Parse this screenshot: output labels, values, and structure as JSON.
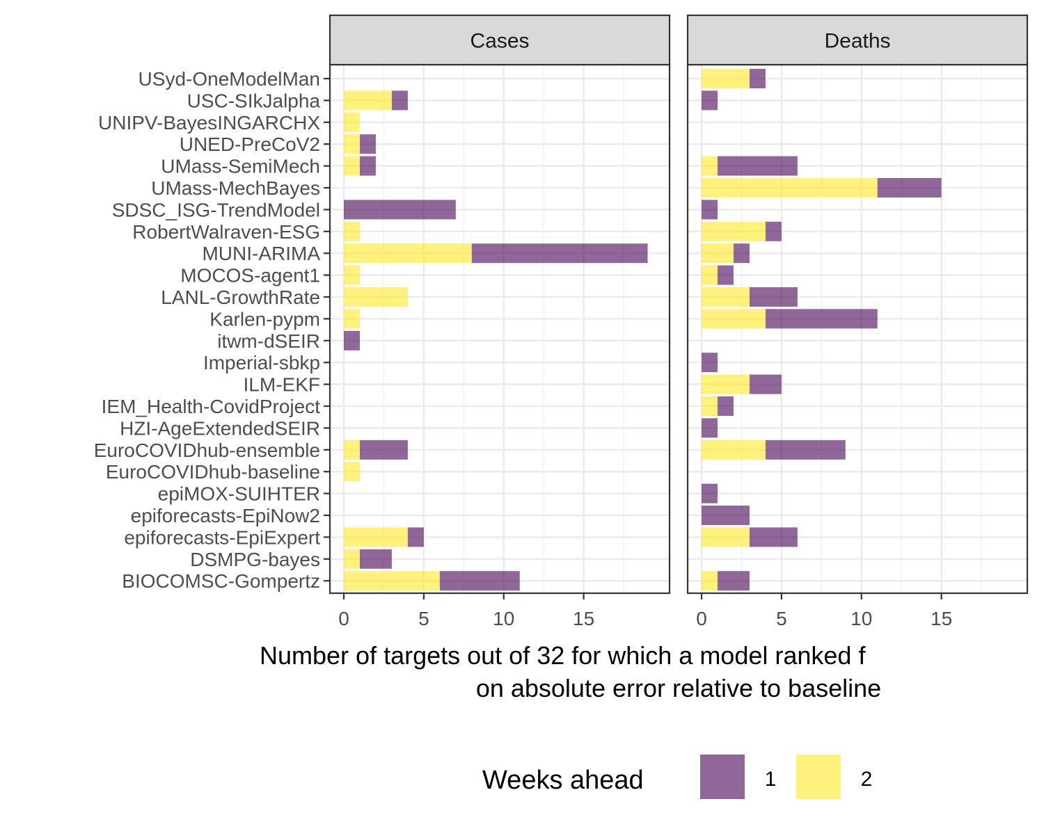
{
  "chart_data": {
    "type": "bar",
    "orientation": "horizontal",
    "stacked": true,
    "facets": [
      "Cases",
      "Deaths"
    ],
    "categories": [
      "USyd-OneModelMan",
      "USC-SIkJalpha",
      "UNIPV-BayesINGARCHX",
      "UNED-PreCoV2",
      "UMass-SemiMech",
      "UMass-MechBayes",
      "SDSC_ISG-TrendModel",
      "RobertWalraven-ESG",
      "MUNI-ARIMA",
      "MOCOS-agent1",
      "LANL-GrowthRate",
      "Karlen-pypm",
      "itwm-dSEIR",
      "Imperial-sbkp",
      "ILM-EKF",
      "IEM_Health-CovidProject",
      "HZI-AgeExtendedSEIR",
      "EuroCOVIDhub-ensemble",
      "EuroCOVIDhub-baseline",
      "epiMOX-SUIHTER",
      "epiforecasts-EpiNow2",
      "epiforecasts-EpiExpert",
      "DSMPG-bayes",
      "BIOCOMSC-Gompertz"
    ],
    "series": [
      {
        "name": "2",
        "color": "#FDE725",
        "values": {
          "Cases": [
            0,
            3,
            1,
            1,
            1,
            0,
            0,
            1,
            8,
            1,
            4,
            1,
            0,
            0,
            0,
            0,
            0,
            1,
            1,
            0,
            0,
            4,
            1,
            6
          ],
          "Deaths": [
            3,
            0,
            0,
            0,
            1,
            11,
            0,
            4,
            2,
            1,
            3,
            4,
            0,
            0,
            3,
            1,
            0,
            4,
            0,
            0,
            0,
            3,
            0,
            1
          ]
        }
      },
      {
        "name": "1",
        "color": "#440154",
        "values": {
          "Cases": [
            0,
            1,
            0,
            1,
            1,
            0,
            7,
            0,
            11,
            0,
            0,
            0,
            1,
            0,
            0,
            0,
            0,
            3,
            0,
            0,
            0,
            1,
            2,
            5
          ],
          "Deaths": [
            1,
            1,
            0,
            0,
            5,
            4,
            1,
            1,
            1,
            1,
            3,
            7,
            0,
            1,
            2,
            1,
            1,
            5,
            0,
            1,
            3,
            3,
            0,
            2
          ]
        }
      }
    ],
    "xticks": [
      0,
      5,
      10,
      15
    ],
    "xlim": [
      0,
      19.5
    ],
    "xlabel_lines": [
      "Number of targets out of 32 for which a model ranked f",
      "on absolute error relative to baseline"
    ],
    "legend": {
      "title": "Weeks ahead",
      "position": "bottom",
      "items": [
        {
          "label": "1",
          "color": "#440154"
        },
        {
          "label": "2",
          "color": "#FDE725"
        }
      ]
    },
    "grid": true,
    "bar_opacity": 0.6,
    "strip_color": "#d9d9d9"
  }
}
